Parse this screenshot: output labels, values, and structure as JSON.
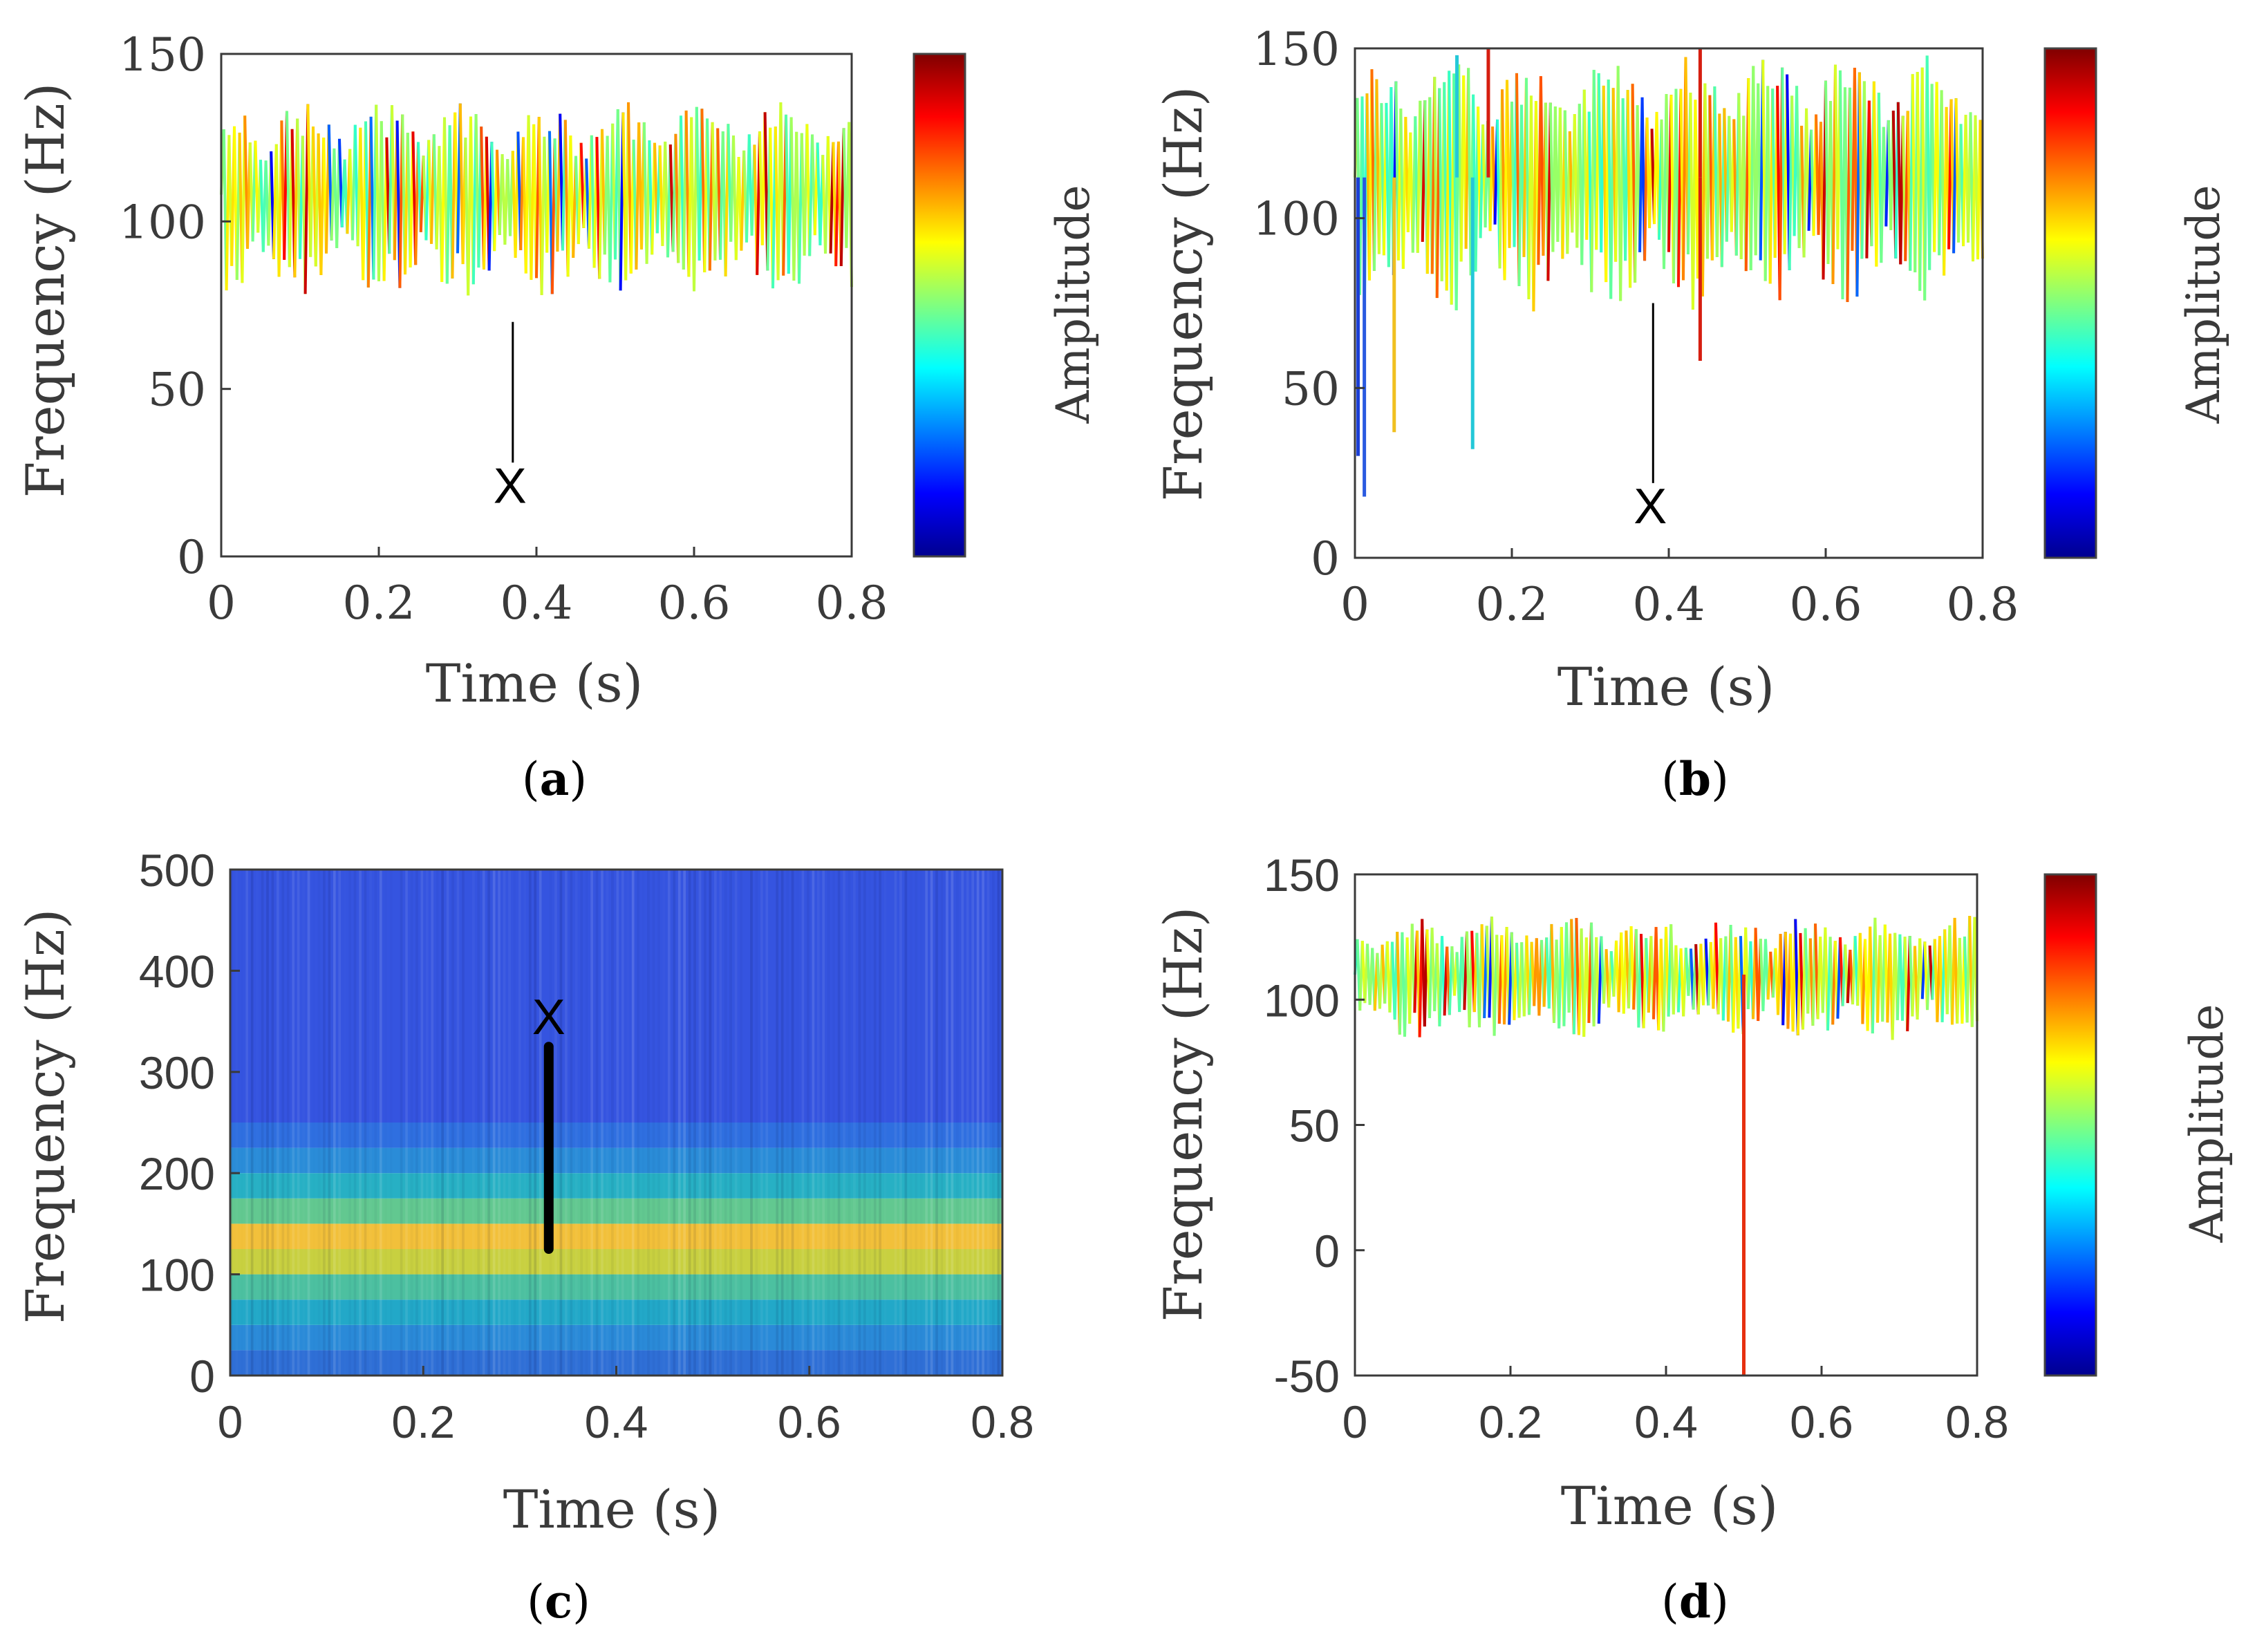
{
  "chart_data": [
    {
      "id": "a",
      "type": "scatter",
      "caption": "(a)",
      "caption_letter": "a",
      "xlabel": "Time (s)",
      "ylabel": "Frequency (Hz)",
      "colorbar_label": "Amplitude",
      "xlim": [
        0,
        0.8
      ],
      "ylim": [
        0,
        150
      ],
      "xticks": [
        0,
        0.2,
        0.4,
        0.6,
        0.8
      ],
      "xtick_labels": [
        "0",
        "0.2",
        "0.4",
        "0.6",
        "0.8"
      ],
      "yticks": [
        0,
        50,
        100,
        150
      ],
      "ytick_labels": [
        "0",
        "50",
        "100",
        "150"
      ],
      "annotation": {
        "text": "X",
        "x": 0.37,
        "y_top": 70,
        "y_bottom": 28
      },
      "signal": {
        "center": 108,
        "spread": 28,
        "n": 240,
        "seed": 11,
        "spikes": []
      }
    },
    {
      "id": "b",
      "type": "scatter",
      "caption": "(b)",
      "caption_letter": "b",
      "xlabel": "Time (s)",
      "ylabel": "Frequency (Hz)",
      "colorbar_label": "Amplitude",
      "xlim": [
        0,
        0.8
      ],
      "ylim": [
        0,
        150
      ],
      "xticks": [
        0,
        0.2,
        0.4,
        0.6,
        0.8
      ],
      "xtick_labels": [
        "0",
        "0.2",
        "0.4",
        "0.6",
        "0.8"
      ],
      "yticks": [
        0,
        50,
        100,
        150
      ],
      "ytick_labels": [
        "0",
        "50",
        "100",
        "150"
      ],
      "annotation": {
        "text": "X",
        "x": 0.38,
        "y_top": 75,
        "y_bottom": 22
      },
      "signal": {
        "center": 112,
        "spread": 36,
        "n": 260,
        "seed": 23,
        "spikes": [
          {
            "x": 0.004,
            "y": 30,
            "color": "#1b3fd6"
          },
          {
            "x": 0.012,
            "y": 18,
            "color": "#2a5ae0"
          },
          {
            "x": 0.05,
            "y": 37,
            "color": "#f0c020"
          },
          {
            "x": 0.15,
            "y": 32,
            "color": "#24c8d8"
          },
          {
            "x": 0.44,
            "y": 58,
            "color": "#d61e10"
          },
          {
            "x": 0.17,
            "y": 150,
            "color": "#d61e10"
          },
          {
            "x": 0.44,
            "y": 150,
            "color": "#d61e10"
          },
          {
            "x": 0.13,
            "y": 148,
            "color": "#24c8d8"
          }
        ]
      }
    },
    {
      "id": "c",
      "type": "heatmap",
      "caption": "(c)",
      "caption_letter": "c",
      "xlabel": "Time (s)",
      "ylabel": "Frequency (Hz)",
      "xlim": [
        0,
        0.8
      ],
      "ylim": [
        0,
        500
      ],
      "xticks": [
        0,
        0.2,
        0.4,
        0.6,
        0.8
      ],
      "xtick_labels": [
        "0",
        "0.2",
        "0.4",
        "0.6",
        "0.8"
      ],
      "yticks": [
        0,
        100,
        200,
        300,
        400,
        500
      ],
      "ytick_labels": [
        "0",
        "100",
        "200",
        "300",
        "400",
        "500"
      ],
      "annotation": {
        "text": "X",
        "x": 0.33,
        "y_top": 325,
        "y_bottom": 125
      },
      "bands": [
        {
          "f0": 0,
          "f1": 25,
          "color": "#2f6fd6"
        },
        {
          "f0": 25,
          "f1": 50,
          "color": "#2a8ad8"
        },
        {
          "f0": 50,
          "f1": 75,
          "color": "#22a8c8"
        },
        {
          "f0": 75,
          "f1": 100,
          "color": "#4cc0a0"
        },
        {
          "f0": 100,
          "f1": 125,
          "color": "#c8d040"
        },
        {
          "f0": 125,
          "f1": 150,
          "color": "#f2c03a"
        },
        {
          "f0": 150,
          "f1": 175,
          "color": "#62c890"
        },
        {
          "f0": 175,
          "f1": 200,
          "color": "#27b0c4"
        },
        {
          "f0": 200,
          "f1": 225,
          "color": "#2a8cd8"
        },
        {
          "f0": 225,
          "f1": 250,
          "color": "#2f6fe0"
        },
        {
          "f0": 250,
          "f1": 500,
          "color": "#3554e0"
        }
      ]
    },
    {
      "id": "d",
      "type": "scatter",
      "caption": "(d)",
      "caption_letter": "d",
      "xlabel": "Time (s)",
      "ylabel": "Frequency (Hz)",
      "colorbar_label": "Amplitude",
      "xlim": [
        0,
        0.8
      ],
      "ylim": [
        -50,
        150
      ],
      "xticks": [
        0,
        0.2,
        0.4,
        0.6,
        0.8
      ],
      "xtick_labels": [
        "0",
        "0.2",
        "0.4",
        "0.6",
        "0.8"
      ],
      "yticks": [
        -50,
        0,
        50,
        100,
        150
      ],
      "ytick_labels": [
        "-50",
        "0",
        "50",
        "100",
        "150"
      ],
      "annotation": null,
      "signal": {
        "center": 110,
        "spread": 24,
        "n": 250,
        "seed": 37,
        "spikes": [
          {
            "x": 0.5,
            "y": -50,
            "color": "#e63010"
          }
        ]
      }
    }
  ]
}
